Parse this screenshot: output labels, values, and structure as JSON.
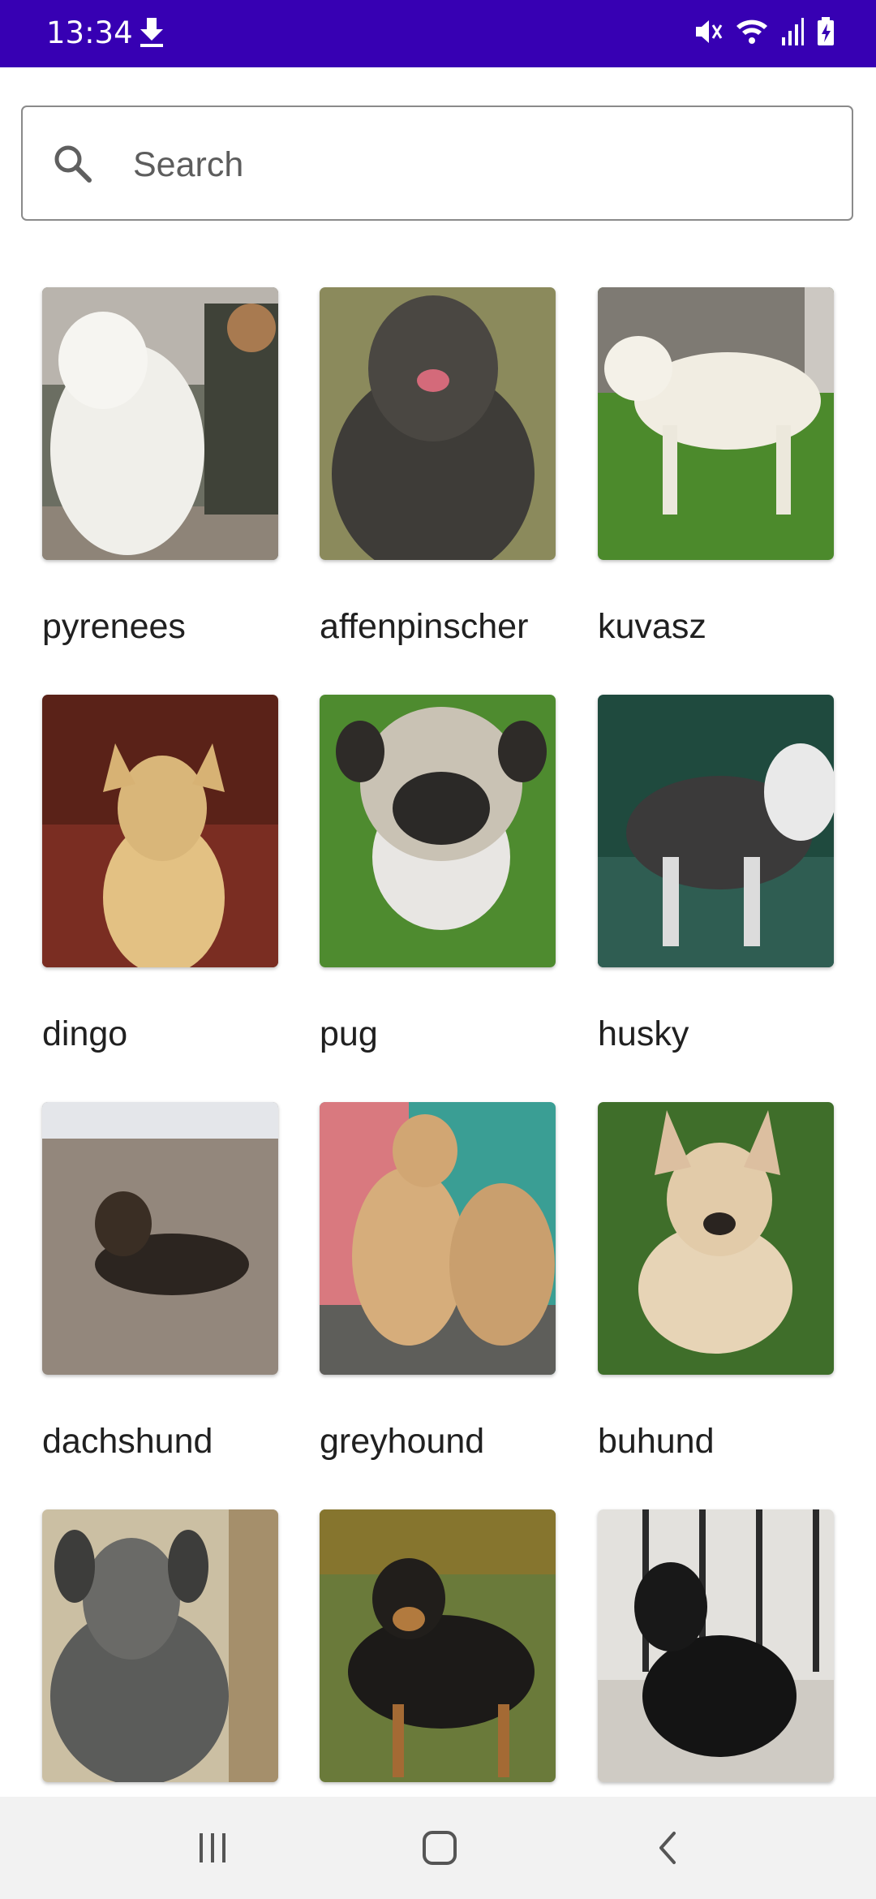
{
  "status_bar": {
    "time": "13:34",
    "icons": [
      "download-icon",
      "mute-icon",
      "wifi-icon",
      "signal-icon",
      "battery-charging-icon"
    ]
  },
  "search": {
    "placeholder": "Search",
    "value": ""
  },
  "breeds": [
    {
      "label": "pyrenees",
      "photo": "white-dog"
    },
    {
      "label": "affenpinscher",
      "photo": "dark-shaggy-dog"
    },
    {
      "label": "kuvasz",
      "photo": "white-dog-on-grass"
    },
    {
      "label": "dingo",
      "photo": "tan-dog"
    },
    {
      "label": "pug",
      "photo": "pug-on-grass"
    },
    {
      "label": "husky",
      "photo": "husky-in-water"
    },
    {
      "label": "dachshund",
      "photo": "dog-on-beach"
    },
    {
      "label": "greyhound",
      "photo": "tan-puppies"
    },
    {
      "label": "buhund",
      "photo": "puppy-on-grass"
    },
    {
      "label": "",
      "photo": "grey-wolfhound"
    },
    {
      "label": "",
      "photo": "black-tan-dog"
    },
    {
      "label": "",
      "photo": "black-dog"
    }
  ],
  "nav": {
    "icons": [
      "recent-apps-icon",
      "home-icon",
      "back-icon"
    ]
  },
  "colors": {
    "status_bar": "#3700b3",
    "nav_bar": "#f2f2f2",
    "label_text": "#202020"
  }
}
